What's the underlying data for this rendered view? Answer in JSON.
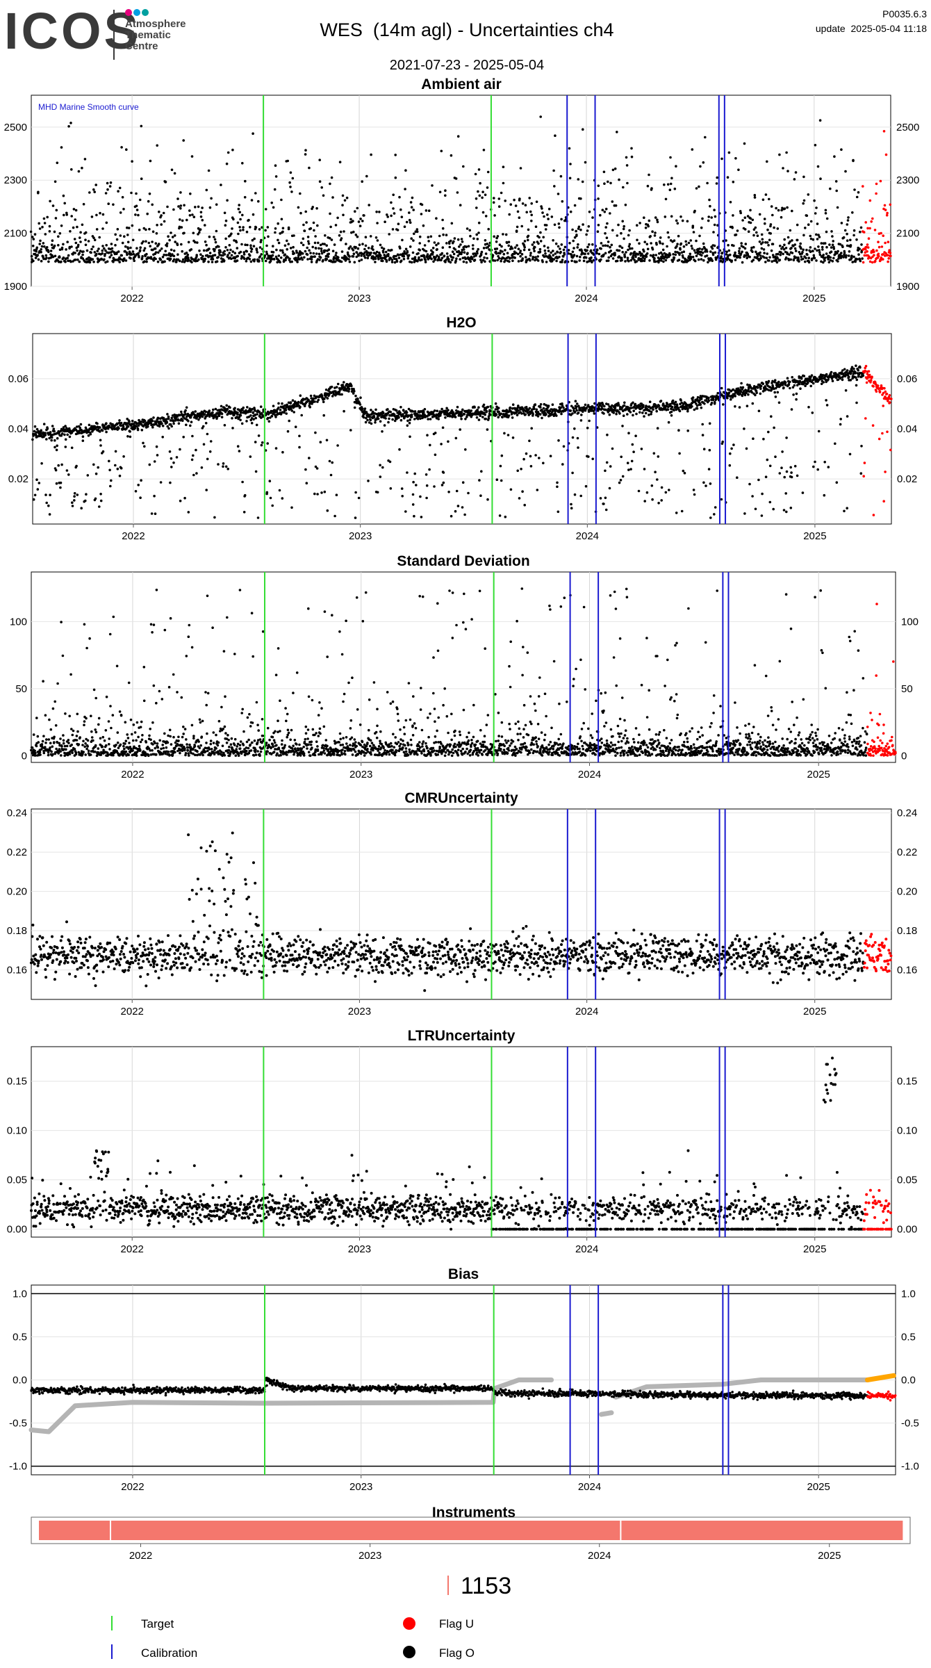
{
  "header": {
    "logo": "ICOS",
    "org_lines": [
      "Atmosphere",
      "Thematic",
      "Centre"
    ],
    "title": "WES  (14m agl) - Uncertainties ch4",
    "subtitle": "2021-07-23 - 2025-05-04",
    "version": "P0035.6.3",
    "update": "update  2025-05-04 11:18"
  },
  "colors": {
    "target": "#33dd33",
    "calibration": "#1a1ad0",
    "flag_u": "#ff0000",
    "flag_o": "#000000",
    "reference": "#b4b4b4",
    "reference_recent": "#ffa500",
    "instrument": "#f4776d",
    "logo_dots": [
      "#e6007e",
      "#009fe3",
      "#00a0a0"
    ]
  },
  "chart_data": [
    {
      "key": "ambient",
      "type": "scatter",
      "title": "Ambient air",
      "annotation": "MHD Marine Smooth curve",
      "x_range": [
        "2021-07-23",
        "2025-05-04"
      ],
      "x_ticks": [
        "2022",
        "2023",
        "2024",
        "2025"
      ],
      "ylim": [
        1900,
        2620
      ],
      "yticks": [
        1900,
        2100,
        2300,
        2500
      ],
      "baseline": 2000,
      "spike_range": [
        2100,
        2550
      ],
      "grid": true
    },
    {
      "key": "h2o",
      "type": "scatter",
      "title": "H2O",
      "x_range": [
        "2021-07-23",
        "2025-05-04"
      ],
      "x_ticks": [
        "2022",
        "2023",
        "2024",
        "2025"
      ],
      "ylim": [
        0.002,
        0.078
      ],
      "yticks": [
        0.02,
        0.04,
        0.06
      ],
      "series_trend": [
        [
          "2021-08-01",
          0.038
        ],
        [
          "2022-01-20",
          0.042
        ],
        [
          "2022-06-01",
          0.047
        ],
        [
          "2022-08-10",
          0.046
        ],
        [
          "2022-12-15",
          0.057
        ],
        [
          "2023-01-10",
          0.045
        ],
        [
          "2024-06-01",
          0.049
        ],
        [
          "2024-09-01",
          0.055
        ],
        [
          "2025-01-01",
          0.06
        ],
        [
          "2025-03-20",
          0.063
        ],
        [
          "2025-05-01",
          0.051
        ]
      ],
      "grid": true
    },
    {
      "key": "stdev",
      "type": "scatter",
      "title": "Standard Deviation",
      "x_range": [
        "2021-07-23",
        "2025-05-04"
      ],
      "x_ticks": [
        "2022",
        "2023",
        "2024",
        "2025"
      ],
      "ylim": [
        -5,
        137
      ],
      "yticks": [
        0,
        50,
        100
      ],
      "grid": true
    },
    {
      "key": "cmr",
      "type": "scatter",
      "title": "CMRUncertainty",
      "x_range": [
        "2021-07-23",
        "2025-05-04"
      ],
      "x_ticks": [
        "2022",
        "2023",
        "2024",
        "2025"
      ],
      "ylim": [
        0.145,
        0.242
      ],
      "yticks": [
        0.16,
        0.18,
        0.2,
        0.22,
        0.24
      ],
      "baseline": 0.167,
      "grid": true
    },
    {
      "key": "ltr",
      "type": "scatter",
      "title": "LTRUncertainty",
      "x_range": [
        "2021-07-23",
        "2025-05-04"
      ],
      "x_ticks": [
        "2022",
        "2023",
        "2024",
        "2025"
      ],
      "ylim": [
        -0.008,
        0.185
      ],
      "yticks": [
        0.0,
        0.05,
        0.1,
        0.15
      ],
      "baseline": 0.02,
      "grid": true
    },
    {
      "key": "bias",
      "type": "line",
      "title": "Bias",
      "x_range": [
        "2021-07-23",
        "2025-05-04"
      ],
      "x_ticks": [
        "2022",
        "2023",
        "2024",
        "2025"
      ],
      "ylim": [
        -1.1,
        1.1
      ],
      "yticks": [
        -1.0,
        -0.5,
        0.0,
        0.5,
        1.0
      ],
      "hlines": [
        1.0,
        -1.0
      ],
      "series": [
        {
          "role": "bias",
          "color": "black",
          "points": [
            [
              "2021-07-28",
              -0.12
            ],
            [
              "2022-07-31",
              -0.12
            ],
            [
              "2022-08-02",
              0.0
            ],
            [
              "2022-09-15",
              -0.1
            ],
            [
              "2023-07-31",
              -0.1
            ],
            [
              "2023-08-02",
              -0.15
            ],
            [
              "2024-07-31",
              -0.18
            ],
            [
              "2025-03-20",
              -0.18
            ]
          ]
        },
        {
          "role": "reference",
          "color": "grey",
          "points": [
            [
              "2021-07-23",
              -0.58
            ],
            [
              "2021-08-20",
              -0.6
            ],
            [
              "2021-10-01",
              -0.3
            ],
            [
              "2022-01-01",
              -0.26
            ],
            [
              "2022-07-31",
              -0.27
            ],
            [
              "2023-07-31",
              -0.26
            ],
            [
              "2023-08-02",
              -0.1
            ],
            [
              "2023-09-10",
              0.0
            ],
            [
              "2023-11-01",
              0.0
            ]
          ]
        },
        {
          "role": "reference",
          "color": "grey",
          "points": [
            [
              "2024-01-20",
              -0.4
            ],
            [
              "2024-02-05",
              -0.38
            ]
          ]
        },
        {
          "role": "reference",
          "color": "grey",
          "points": [
            [
              "2024-02-12",
              -0.2
            ],
            [
              "2024-04-01",
              -0.08
            ],
            [
              "2024-08-01",
              -0.05
            ],
            [
              "2024-10-01",
              0.0
            ],
            [
              "2025-03-20",
              0.0
            ]
          ]
        }
      ],
      "grid": true
    },
    {
      "key": "instruments",
      "type": "bar",
      "title": "Instruments",
      "x_range": [
        "2021-07-23",
        "2025-05-04"
      ],
      "x_ticks": [
        "2022",
        "2023",
        "2024",
        "2025"
      ],
      "segments": [
        [
          "2021-07-23",
          "2021-11-15"
        ],
        [
          "2021-11-15",
          "2024-02-05"
        ],
        [
          "2024-02-05",
          "2025-04-30"
        ]
      ]
    }
  ],
  "events": {
    "target": [
      "2022-07-31",
      "2023-08-01"
    ],
    "calibration": [
      "2023-12-01",
      "2024-01-15",
      "2024-08-01",
      "2024-08-10"
    ],
    "flag_u_range": [
      "2025-03-20",
      "2025-05-04"
    ]
  },
  "legend": {
    "count": "1153",
    "items": [
      {
        "label": "Target"
      },
      {
        "label": "Calibration"
      },
      {
        "label": "Flag U"
      },
      {
        "label": "Flag O"
      }
    ]
  }
}
